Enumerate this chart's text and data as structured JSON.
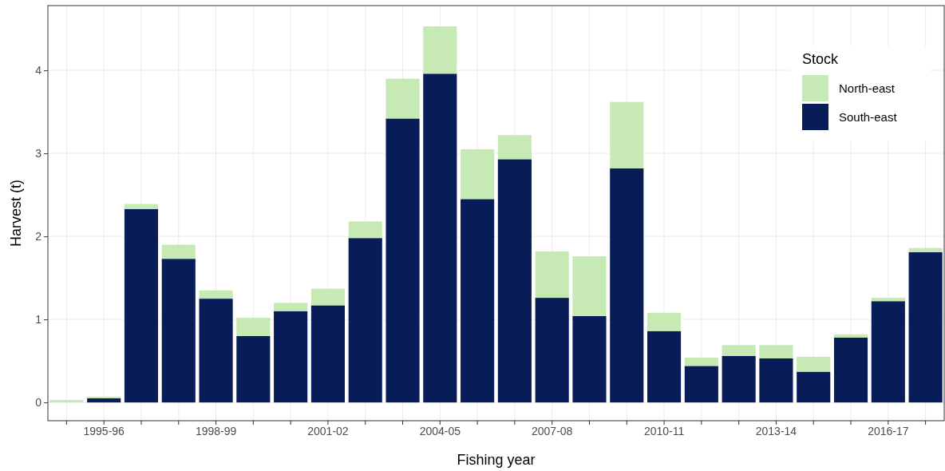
{
  "chart_data": {
    "type": "bar",
    "stacked": true,
    "xlabel": "Fishing year",
    "ylabel": "Harvest (t)",
    "legend_title": "Stock",
    "legend": "top right",
    "grid": true,
    "categories": [
      null,
      "1995-96",
      null,
      null,
      "1998-99",
      null,
      null,
      "2001-02",
      null,
      null,
      "2004-05",
      null,
      null,
      "2007-08",
      null,
      null,
      "2010-11",
      null,
      null,
      "2013-14",
      null,
      null,
      "2016-17",
      null
    ],
    "ylim": [
      -0.22,
      4.78
    ],
    "yticks": [
      0,
      1,
      2,
      3,
      4
    ],
    "series": [
      {
        "name": "South-east",
        "color": "#081d58",
        "values": [
          0,
          0.05,
          2.33,
          1.73,
          1.25,
          0.8,
          1.1,
          1.17,
          1.98,
          3.42,
          3.96,
          2.45,
          2.93,
          1.26,
          1.04,
          2.82,
          0.86,
          0.44,
          0.56,
          0.53,
          0.37,
          0.78,
          1.22,
          1.81
        ]
      },
      {
        "name": "North-east",
        "color": "#c7e9b4",
        "values": [
          0.03,
          0.02,
          0.06,
          0.17,
          0.1,
          0.22,
          0.1,
          0.2,
          0.2,
          0.48,
          0.57,
          0.6,
          0.29,
          0.56,
          0.72,
          0.8,
          0.22,
          0.1,
          0.13,
          0.16,
          0.18,
          0.04,
          0.04,
          0.05
        ]
      }
    ]
  }
}
